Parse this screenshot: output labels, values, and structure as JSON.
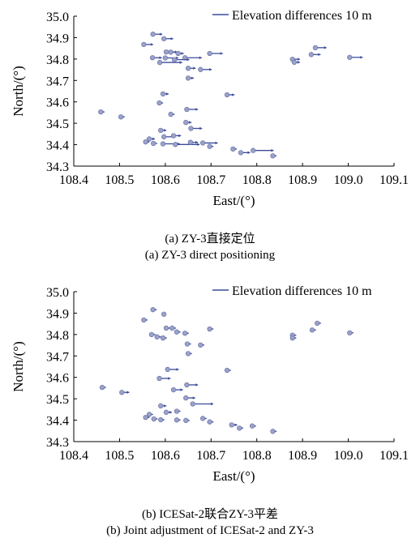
{
  "chart_data": [
    {
      "type": "scatter",
      "xlabel": "East/(°)",
      "ylabel": "North/(°)",
      "xlim": [
        108.4,
        109.1
      ],
      "ylim": [
        34.3,
        35.0
      ],
      "xticks": [
        "108.4",
        "108.5",
        "108.6",
        "108.7",
        "108.8",
        "108.9",
        "109.0",
        "109.1"
      ],
      "yticks": [
        "34.3",
        "34.4",
        "34.5",
        "34.6",
        "34.7",
        "34.8",
        "34.9",
        "35.0"
      ],
      "legend": {
        "label": "Elevation differences 10 m",
        "position": "top-right"
      },
      "caption_cn": "(a) ZY-3直接定位",
      "caption_en": "(a) ZY-3 direct positioning",
      "point_color": "#9aa2c8",
      "arrow_color": "#3b4a9c",
      "points": [
        {
          "lon": 108.573,
          "lat": 34.916,
          "diff": 5
        },
        {
          "lon": 108.597,
          "lat": 34.895,
          "diff": 5
        },
        {
          "lon": 108.553,
          "lat": 34.868,
          "diff": 5
        },
        {
          "lon": 108.602,
          "lat": 34.833,
          "diff": 6
        },
        {
          "lon": 108.612,
          "lat": 34.832,
          "diff": 5
        },
        {
          "lon": 108.628,
          "lat": 34.826,
          "diff": 3
        },
        {
          "lon": 108.697,
          "lat": 34.826,
          "diff": 7
        },
        {
          "lon": 108.572,
          "lat": 34.806,
          "diff": 5
        },
        {
          "lon": 108.6,
          "lat": 34.805,
          "diff": 7
        },
        {
          "lon": 108.643,
          "lat": 34.806,
          "diff": 9
        },
        {
          "lon": 108.588,
          "lat": 34.784,
          "diff": 12
        },
        {
          "lon": 108.62,
          "lat": 34.797,
          "diff": 8
        },
        {
          "lon": 108.65,
          "lat": 34.757,
          "diff": 4
        },
        {
          "lon": 108.677,
          "lat": 34.751,
          "diff": 6
        },
        {
          "lon": 108.65,
          "lat": 34.711,
          "diff": 3
        },
        {
          "lon": 108.928,
          "lat": 34.853,
          "diff": 6
        },
        {
          "lon": 108.919,
          "lat": 34.821,
          "diff": 5
        },
        {
          "lon": 108.878,
          "lat": 34.799,
          "diff": 4
        },
        {
          "lon": 108.882,
          "lat": 34.785,
          "diff": 3
        },
        {
          "lon": 109.003,
          "lat": 34.808,
          "diff": 7
        },
        {
          "lon": 108.735,
          "lat": 34.633,
          "diff": 4
        },
        {
          "lon": 108.595,
          "lat": 34.637,
          "diff": 3
        },
        {
          "lon": 108.587,
          "lat": 34.595,
          "diff": 2
        },
        {
          "lon": 108.647,
          "lat": 34.565,
          "diff": 6
        },
        {
          "lon": 108.459,
          "lat": 34.553,
          "diff": 2
        },
        {
          "lon": 108.503,
          "lat": 34.53,
          "diff": 2
        },
        {
          "lon": 108.612,
          "lat": 34.542,
          "diff": 2
        },
        {
          "lon": 108.645,
          "lat": 34.504,
          "diff": 3
        },
        {
          "lon": 108.656,
          "lat": 34.476,
          "diff": 6
        },
        {
          "lon": 108.59,
          "lat": 34.467,
          "diff": 3
        },
        {
          "lon": 108.597,
          "lat": 34.437,
          "diff": 6
        },
        {
          "lon": 108.618,
          "lat": 34.442,
          "diff": 4
        },
        {
          "lon": 108.565,
          "lat": 34.427,
          "diff": 3
        },
        {
          "lon": 108.557,
          "lat": 34.413,
          "diff": 2
        },
        {
          "lon": 108.574,
          "lat": 34.406,
          "diff": 2
        },
        {
          "lon": 108.595,
          "lat": 34.404,
          "diff": 9
        },
        {
          "lon": 108.622,
          "lat": 34.401,
          "diff": 13
        },
        {
          "lon": 108.655,
          "lat": 34.411,
          "diff": 4
        },
        {
          "lon": 108.682,
          "lat": 34.408,
          "diff": 8
        },
        {
          "lon": 108.697,
          "lat": 34.392,
          "diff": 2
        },
        {
          "lon": 108.748,
          "lat": 34.38,
          "diff": 2
        },
        {
          "lon": 108.765,
          "lat": 34.363,
          "diff": 5
        },
        {
          "lon": 108.792,
          "lat": 34.373,
          "diff": 11
        },
        {
          "lon": 108.835,
          "lat": 34.348,
          "diff": 2
        }
      ]
    },
    {
      "type": "scatter",
      "xlabel": "East/(°)",
      "ylabel": "North/(°)",
      "xlim": [
        108.4,
        109.1
      ],
      "ylim": [
        34.3,
        35.0
      ],
      "xticks": [
        "108.4",
        "108.5",
        "108.6",
        "108.7",
        "108.8",
        "108.9",
        "109.0",
        "109.1"
      ],
      "yticks": [
        "34.3",
        "34.4",
        "34.5",
        "34.6",
        "34.7",
        "34.8",
        "34.9",
        "35.0"
      ],
      "legend": {
        "label": "Elevation differences 10 m",
        "position": "top-right"
      },
      "caption_cn": "(b) ICESat-2联合ZY-3平差",
      "caption_en": "(b) Joint adjustment of ICESat-2 and ZY-3",
      "point_color": "#9aa2c8",
      "arrow_color": "#3b4a9c",
      "points": [
        {
          "lon": 108.573,
          "lat": 34.916,
          "diff": 2
        },
        {
          "lon": 108.597,
          "lat": 34.895,
          "diff": 1
        },
        {
          "lon": 108.553,
          "lat": 34.868,
          "diff": 2
        },
        {
          "lon": 108.602,
          "lat": 34.83,
          "diff": 2
        },
        {
          "lon": 108.615,
          "lat": 34.83,
          "diff": 2
        },
        {
          "lon": 108.625,
          "lat": 34.812,
          "diff": 2
        },
        {
          "lon": 108.697,
          "lat": 34.826,
          "diff": 2
        },
        {
          "lon": 108.57,
          "lat": 34.8,
          "diff": 2
        },
        {
          "lon": 108.595,
          "lat": 34.784,
          "diff": 2
        },
        {
          "lon": 108.643,
          "lat": 34.806,
          "diff": 2
        },
        {
          "lon": 108.582,
          "lat": 34.789,
          "diff": 2
        },
        {
          "lon": 108.648,
          "lat": 34.756,
          "diff": 2
        },
        {
          "lon": 108.677,
          "lat": 34.751,
          "diff": 2
        },
        {
          "lon": 108.65,
          "lat": 34.711,
          "diff": 2
        },
        {
          "lon": 108.932,
          "lat": 34.853,
          "diff": 2
        },
        {
          "lon": 108.921,
          "lat": 34.821,
          "diff": 2
        },
        {
          "lon": 108.878,
          "lat": 34.797,
          "diff": 2
        },
        {
          "lon": 108.878,
          "lat": 34.784,
          "diff": 2
        },
        {
          "lon": 109.003,
          "lat": 34.808,
          "diff": 2
        },
        {
          "lon": 108.735,
          "lat": 34.633,
          "diff": 2
        },
        {
          "lon": 108.605,
          "lat": 34.637,
          "diff": 6
        },
        {
          "lon": 108.587,
          "lat": 34.595,
          "diff": 6
        },
        {
          "lon": 108.647,
          "lat": 34.565,
          "diff": 6
        },
        {
          "lon": 108.462,
          "lat": 34.553,
          "diff": 2
        },
        {
          "lon": 108.505,
          "lat": 34.53,
          "diff": 4
        },
        {
          "lon": 108.618,
          "lat": 34.542,
          "diff": 5
        },
        {
          "lon": 108.645,
          "lat": 34.504,
          "diff": 5
        },
        {
          "lon": 108.66,
          "lat": 34.476,
          "diff": 11
        },
        {
          "lon": 108.59,
          "lat": 34.467,
          "diff": 3
        },
        {
          "lon": 108.602,
          "lat": 34.437,
          "diff": 3
        },
        {
          "lon": 108.625,
          "lat": 34.442,
          "diff": 2
        },
        {
          "lon": 108.565,
          "lat": 34.427,
          "diff": 2
        },
        {
          "lon": 108.557,
          "lat": 34.413,
          "diff": 2
        },
        {
          "lon": 108.575,
          "lat": 34.406,
          "diff": 2
        },
        {
          "lon": 108.59,
          "lat": 34.402,
          "diff": 2
        },
        {
          "lon": 108.625,
          "lat": 34.401,
          "diff": 2
        },
        {
          "lon": 108.645,
          "lat": 34.399,
          "diff": 2
        },
        {
          "lon": 108.682,
          "lat": 34.408,
          "diff": 2
        },
        {
          "lon": 108.697,
          "lat": 34.392,
          "diff": 2
        },
        {
          "lon": 108.745,
          "lat": 34.378,
          "diff": 3
        },
        {
          "lon": 108.762,
          "lat": 34.363,
          "diff": 2
        },
        {
          "lon": 108.79,
          "lat": 34.373,
          "diff": 2
        },
        {
          "lon": 108.835,
          "lat": 34.348,
          "diff": 2
        }
      ]
    }
  ]
}
